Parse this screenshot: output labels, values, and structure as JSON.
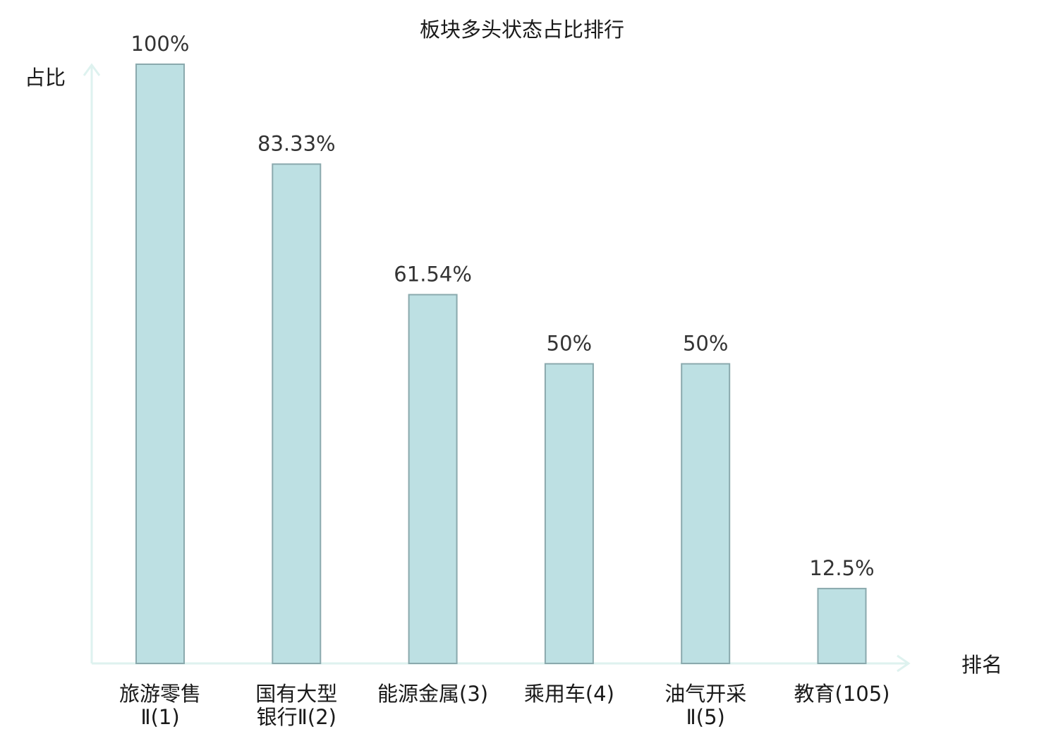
{
  "chart_data": {
    "type": "bar",
    "title": "板块多头状态占比排行",
    "ylabel": "占比",
    "xlabel": "排名",
    "ylim": [
      0,
      100
    ],
    "grid": false,
    "categories": [
      {
        "name": "旅游零售Ⅱ",
        "rank": "(1)",
        "lines": [
          "旅游零售",
          "Ⅱ(1)"
        ]
      },
      {
        "name": "国有大型银行Ⅱ",
        "rank": "(2)",
        "lines": [
          "国有大型",
          "银行Ⅱ(2)"
        ]
      },
      {
        "name": "能源金属",
        "rank": "(3)",
        "lines": [
          "能源金属(3)"
        ]
      },
      {
        "name": "乘用车",
        "rank": "(4)",
        "lines": [
          "乘用车(4)"
        ]
      },
      {
        "name": "油气开采Ⅱ",
        "rank": "(5)",
        "lines": [
          "油气开采",
          "Ⅱ(5)"
        ]
      },
      {
        "name": "教育",
        "rank": "(105)",
        "lines": [
          "教育(105)"
        ],
        "highlight": true
      }
    ],
    "values": [
      100,
      83.33,
      61.54,
      50,
      50,
      12.5
    ],
    "value_labels": [
      "100%",
      "83.33%",
      "61.54%",
      "50%",
      "50%",
      "12.5%"
    ]
  },
  "colors": {
    "bar_fill": "#bde0e3",
    "bar_stroke": "#8aa9ad",
    "axis": "#def2ef",
    "text": "#1a1a1a",
    "value_text": "#333333",
    "highlight_text": "#d0151b"
  }
}
